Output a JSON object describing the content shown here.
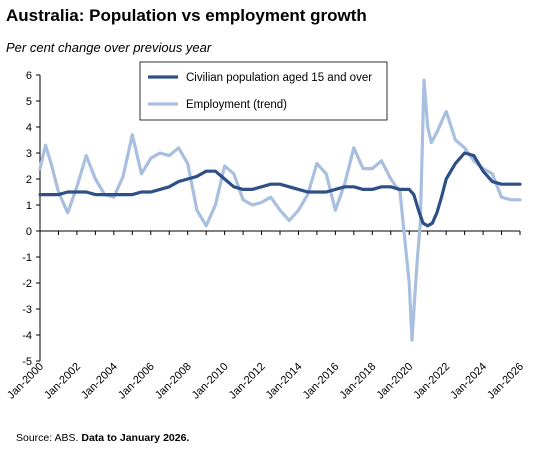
{
  "title": "Australia: Population vs employment growth",
  "subtitle": "Per cent change over previous year",
  "source_prefix": "Source: ABS.",
  "source_note": "Data to January 2026.",
  "colors": {
    "population": "#2f4f87",
    "employment": "#a8bfe0",
    "axis": "#000000",
    "legend_border": "#000000"
  },
  "chart_data": {
    "type": "line",
    "xlabel": "",
    "ylabel": "",
    "ylim": [
      -5,
      6
    ],
    "yticks": [
      6,
      5,
      4,
      3,
      2,
      1,
      0,
      -1,
      -2,
      -3,
      -4,
      -5
    ],
    "xlim": [
      2000,
      2026
    ],
    "xticks": [
      "Jan-2000",
      "Jan-2002",
      "Jan-2004",
      "Jan-2006",
      "Jan-2008",
      "Jan-2010",
      "Jan-2012",
      "Jan-2014",
      "Jan-2016",
      "Jan-2018",
      "Jan-2020",
      "Jan-2022",
      "Jan-2024",
      "Jan-2026"
    ],
    "grid": false,
    "legend_position": "top-center",
    "series": [
      {
        "name": "Civilian population aged 15 and over",
        "key": "population",
        "x": [
          2000,
          2001,
          2001.5,
          2002,
          2002.5,
          2003,
          2003.5,
          2004,
          2004.5,
          2005,
          2005.5,
          2006,
          2006.5,
          2007,
          2007.5,
          2008,
          2008.5,
          2009,
          2009.5,
          2010,
          2010.5,
          2011,
          2011.5,
          2012,
          2012.5,
          2013,
          2013.5,
          2014,
          2014.5,
          2015,
          2015.5,
          2016,
          2016.5,
          2017,
          2017.5,
          2018,
          2018.5,
          2019,
          2019.5,
          2020,
          2020.25,
          2020.5,
          2020.75,
          2021,
          2021.25,
          2021.5,
          2021.75,
          2022,
          2022.5,
          2023,
          2023.5,
          2024,
          2024.5,
          2025,
          2025.5,
          2026
        ],
        "y": [
          1.4,
          1.4,
          1.5,
          1.5,
          1.5,
          1.4,
          1.4,
          1.4,
          1.4,
          1.4,
          1.5,
          1.5,
          1.6,
          1.7,
          1.9,
          2.0,
          2.1,
          2.3,
          2.3,
          2.0,
          1.7,
          1.6,
          1.6,
          1.7,
          1.8,
          1.8,
          1.7,
          1.6,
          1.5,
          1.5,
          1.5,
          1.6,
          1.7,
          1.7,
          1.6,
          1.6,
          1.7,
          1.7,
          1.6,
          1.6,
          1.4,
          0.8,
          0.3,
          0.2,
          0.3,
          0.7,
          1.3,
          2.0,
          2.6,
          3.0,
          2.9,
          2.3,
          1.9,
          1.8,
          1.8,
          1.8
        ]
      },
      {
        "name": "Employment (trend)",
        "key": "employment",
        "x": [
          2000,
          2000.3,
          2000.6,
          2001,
          2001.5,
          2002,
          2002.5,
          2003,
          2003.5,
          2004,
          2004.5,
          2005,
          2005.5,
          2006,
          2006.5,
          2007,
          2007.5,
          2008,
          2008.5,
          2009,
          2009.5,
          2010,
          2010.5,
          2011,
          2011.5,
          2012,
          2012.5,
          2013,
          2013.5,
          2014,
          2014.5,
          2015,
          2015.5,
          2016,
          2016.5,
          2017,
          2017.5,
          2018,
          2018.5,
          2019,
          2019.5,
          2020,
          2020.15,
          2020.3,
          2020.45,
          2020.6,
          2020.8,
          2021,
          2021.2,
          2021.5,
          2022,
          2022.5,
          2023,
          2023.5,
          2024,
          2024.5,
          2025,
          2025.5,
          2026
        ],
        "y": [
          2.4,
          3.3,
          2.6,
          1.5,
          0.7,
          1.7,
          2.9,
          2.0,
          1.4,
          1.3,
          2.1,
          3.7,
          2.2,
          2.8,
          3.0,
          2.9,
          3.2,
          2.6,
          0.8,
          0.2,
          1.0,
          2.5,
          2.2,
          1.2,
          1.0,
          1.1,
          1.3,
          0.8,
          0.4,
          0.8,
          1.4,
          2.6,
          2.2,
          0.8,
          1.8,
          3.2,
          2.4,
          2.4,
          2.7,
          2.0,
          1.5,
          -2.0,
          -4.2,
          -2.5,
          -1.0,
          0.3,
          5.8,
          4.0,
          3.4,
          3.8,
          4.6,
          3.5,
          3.2,
          2.7,
          2.4,
          2.2,
          1.3,
          1.2,
          1.2
        ]
      }
    ]
  }
}
